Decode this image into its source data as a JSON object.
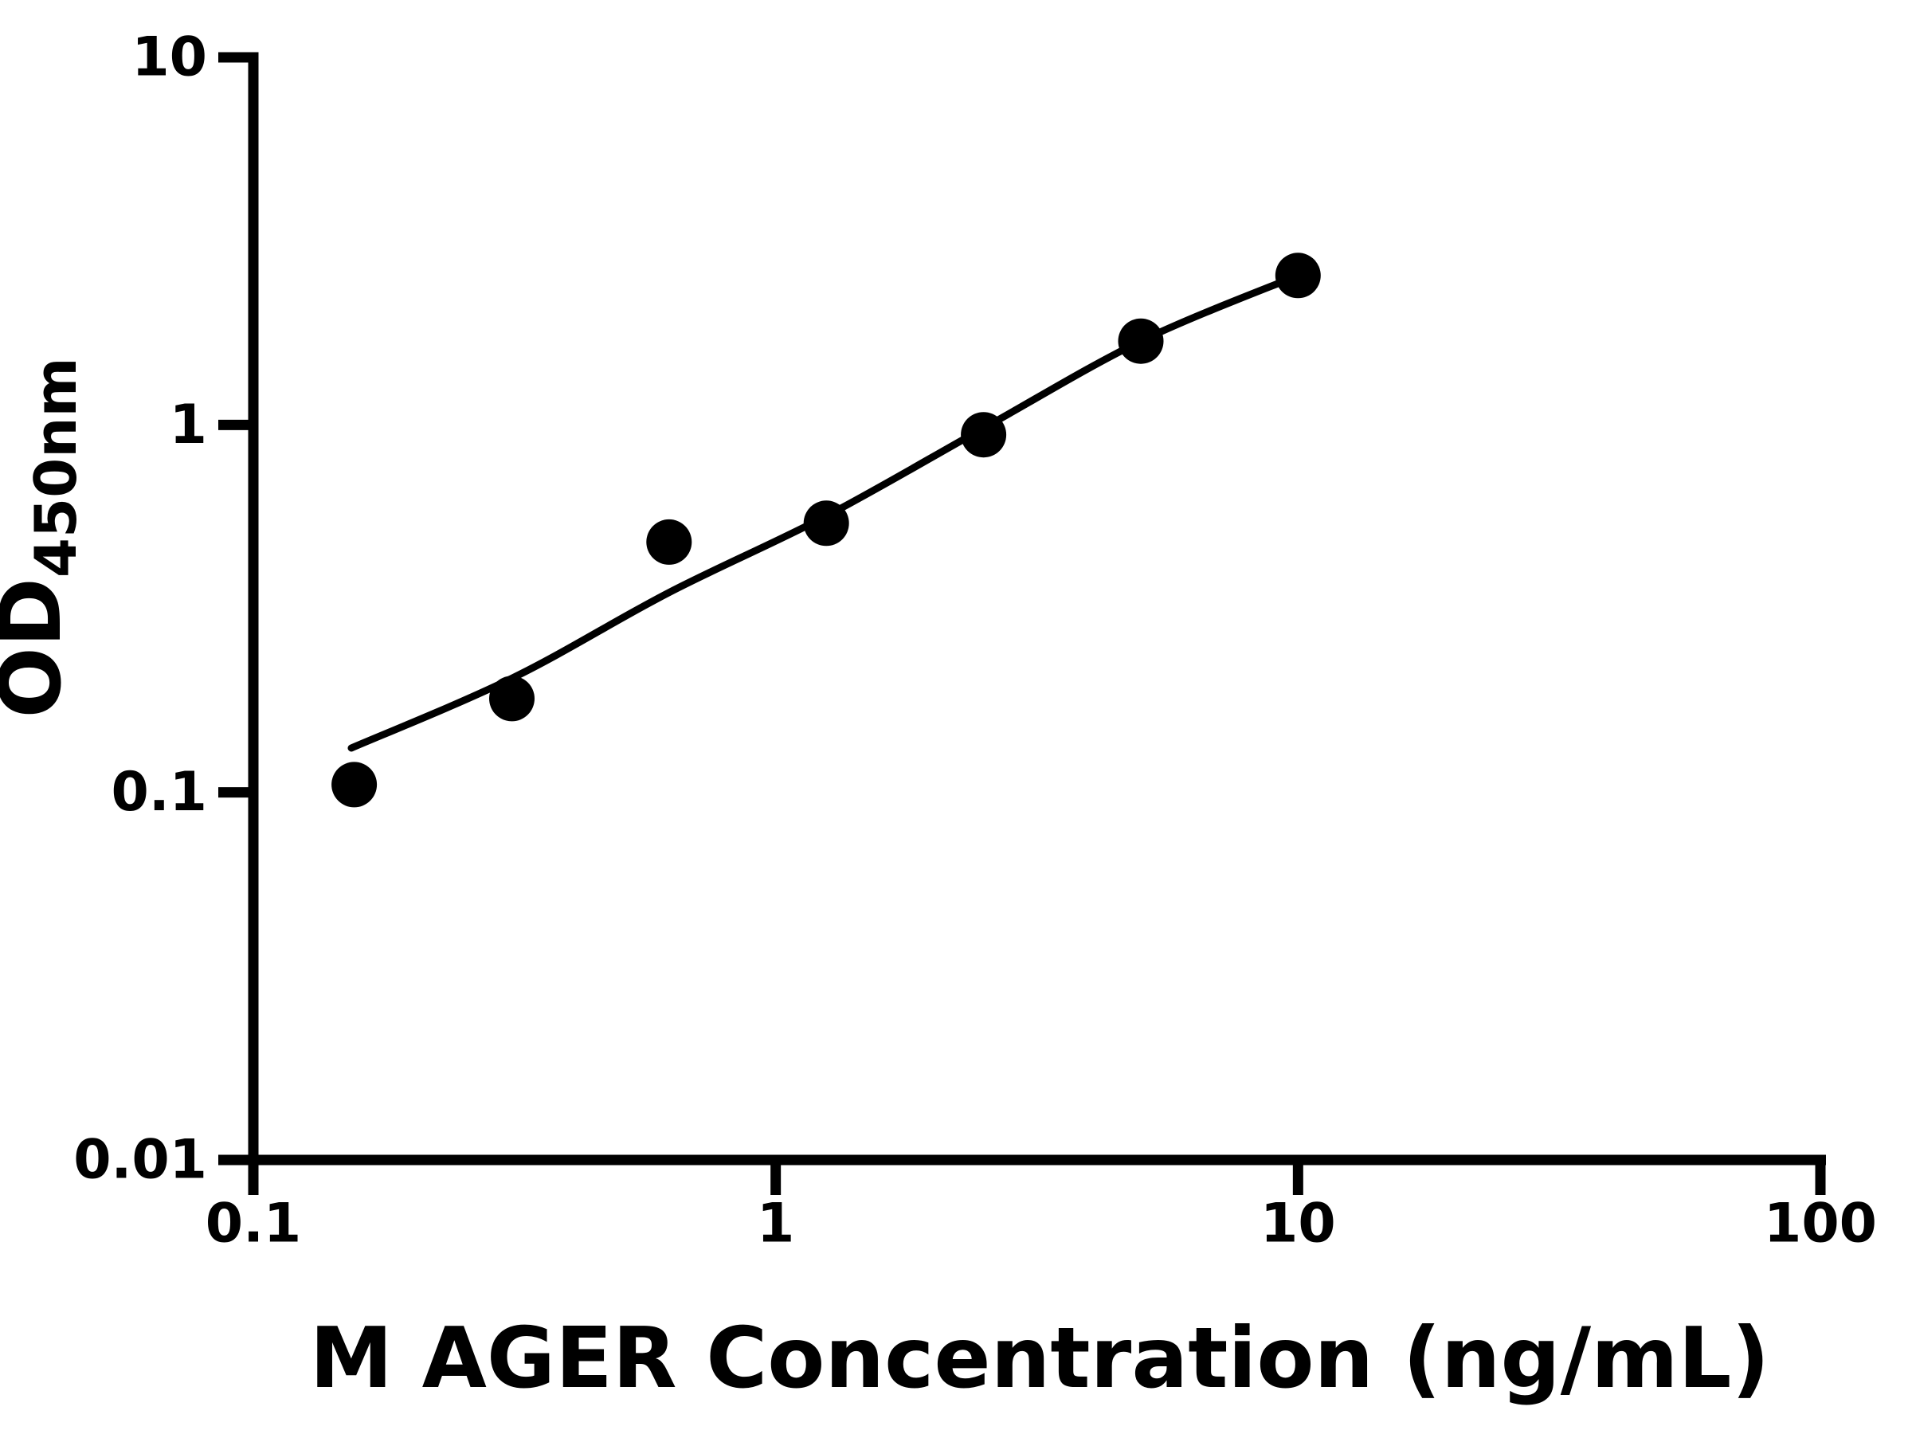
{
  "style": {
    "background": "#ffffff",
    "ink": "#000000"
  },
  "chart_data": {
    "type": "scatter",
    "title": "",
    "xlabel": "M AGER Concentration (ng/mL)",
    "ylabel_main": "OD",
    "ylabel_sub": "450nm",
    "x_scale": "log",
    "y_scale": "log",
    "xlim": [
      0.1,
      100
    ],
    "ylim": [
      0.01,
      10
    ],
    "grid": false,
    "legend": null,
    "x_ticks": [
      {
        "value": 0.1,
        "label": "0.1"
      },
      {
        "value": 1,
        "label": "1"
      },
      {
        "value": 10,
        "label": "10"
      },
      {
        "value": 100,
        "label": "100"
      }
    ],
    "y_ticks": [
      {
        "value": 0.01,
        "label": "0.01"
      },
      {
        "value": 0.1,
        "label": "0.1"
      },
      {
        "value": 1,
        "label": "1"
      },
      {
        "value": 10,
        "label": "10"
      }
    ],
    "series": [
      {
        "name": "standard-points",
        "type": "points",
        "x": [
          0.156,
          0.3125,
          0.625,
          1.25,
          2.5,
          5,
          10
        ],
        "y": [
          0.105,
          0.18,
          0.48,
          0.54,
          0.94,
          1.69,
          2.55
        ]
      },
      {
        "name": "fit-curve",
        "type": "line",
        "x": [
          0.154,
          0.314,
          0.625,
          1.25,
          2.5,
          5,
          10
        ],
        "y": [
          0.132,
          0.205,
          0.35,
          0.565,
          0.98,
          1.69,
          2.55
        ]
      }
    ]
  }
}
